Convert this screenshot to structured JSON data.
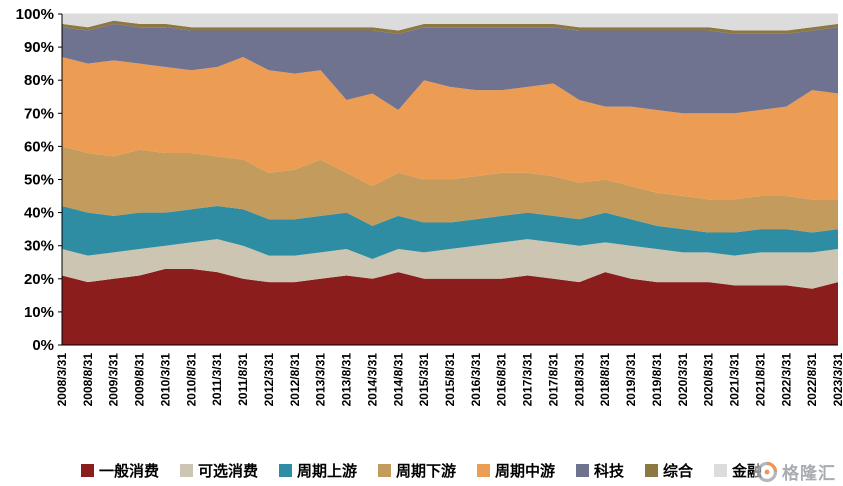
{
  "chart_data": {
    "type": "area",
    "stacked": true,
    "percent_stacked": true,
    "title": "",
    "xlabel": "",
    "ylabel": "",
    "ylim": [
      0,
      100
    ],
    "grid": true,
    "legend_position": "bottom",
    "y_ticks": [
      "0%",
      "10%",
      "20%",
      "30%",
      "40%",
      "50%",
      "60%",
      "70%",
      "80%",
      "90%",
      "100%"
    ],
    "categories": [
      "2008/3/31",
      "2008/8/31",
      "2009/3/31",
      "2009/8/31",
      "2010/3/31",
      "2010/8/31",
      "2011/3/31",
      "2011/8/31",
      "2012/3/31",
      "2012/8/31",
      "2013/3/31",
      "2013/8/31",
      "2014/3/31",
      "2014/8/31",
      "2015/3/31",
      "2015/8/31",
      "2016/3/31",
      "2016/8/31",
      "2017/3/31",
      "2017/8/31",
      "2018/3/31",
      "2018/8/31",
      "2019/3/31",
      "2019/8/31",
      "2020/3/31",
      "2020/8/31",
      "2021/3/31",
      "2021/8/31",
      "2022/3/31",
      "2022/8/31",
      "2023/3/31"
    ],
    "series": [
      {
        "name": "一般消费",
        "color": "#8B1D1D",
        "values": [
          21,
          19,
          20,
          21,
          23,
          23,
          22,
          20,
          19,
          19,
          20,
          21,
          20,
          22,
          20,
          20,
          20,
          20,
          21,
          20,
          19,
          22,
          20,
          19,
          19,
          19,
          18,
          18,
          18,
          17,
          19
        ]
      },
      {
        "name": "可选消费",
        "color": "#CBC5B1",
        "values": [
          8,
          8,
          8,
          8,
          7,
          8,
          10,
          10,
          8,
          8,
          8,
          8,
          6,
          7,
          8,
          9,
          10,
          11,
          11,
          11,
          11,
          9,
          10,
          10,
          9,
          9,
          9,
          10,
          10,
          11,
          10
        ]
      },
      {
        "name": "周期上游",
        "color": "#2F8DA3",
        "values": [
          13,
          13,
          11,
          11,
          10,
          10,
          10,
          11,
          11,
          11,
          11,
          11,
          10,
          10,
          9,
          8,
          8,
          8,
          8,
          8,
          8,
          9,
          8,
          7,
          7,
          6,
          7,
          7,
          7,
          6,
          6
        ]
      },
      {
        "name": "周期下游",
        "color": "#C29B5D",
        "values": [
          18,
          18,
          18,
          19,
          18,
          17,
          15,
          15,
          14,
          15,
          17,
          12,
          12,
          13,
          13,
          13,
          13,
          13,
          12,
          12,
          11,
          10,
          10,
          10,
          10,
          10,
          10,
          10,
          10,
          10,
          9
        ]
      },
      {
        "name": "周期中游",
        "color": "#ED9C54",
        "values": [
          27,
          27,
          29,
          26,
          26,
          25,
          27,
          31,
          31,
          29,
          27,
          22,
          28,
          19,
          30,
          28,
          26,
          25,
          26,
          28,
          25,
          22,
          24,
          25,
          25,
          26,
          26,
          26,
          27,
          33,
          32
        ]
      },
      {
        "name": "科技",
        "color": "#6F7390",
        "values": [
          9,
          10,
          11,
          11,
          12,
          12,
          11,
          8,
          12,
          13,
          12,
          21,
          19,
          23,
          16,
          18,
          19,
          19,
          18,
          17,
          21,
          23,
          23,
          24,
          25,
          25,
          24,
          23,
          22,
          18,
          20
        ]
      },
      {
        "name": "综合",
        "color": "#8C7840",
        "values": [
          1,
          1,
          1,
          1,
          1,
          1,
          1,
          1,
          1,
          1,
          1,
          1,
          1,
          1,
          1,
          1,
          1,
          1,
          1,
          1,
          1,
          1,
          1,
          1,
          1,
          1,
          1,
          1,
          1,
          1,
          1
        ]
      },
      {
        "name": "金融",
        "color": "#DCDCDC",
        "values": [
          3,
          4,
          2,
          3,
          3,
          4,
          4,
          4,
          4,
          4,
          4,
          4,
          4,
          5,
          3,
          3,
          3,
          3,
          3,
          3,
          4,
          4,
          4,
          4,
          4,
          4,
          5,
          5,
          5,
          4,
          3
        ]
      }
    ]
  },
  "watermark": {
    "text": "格隆汇"
  }
}
